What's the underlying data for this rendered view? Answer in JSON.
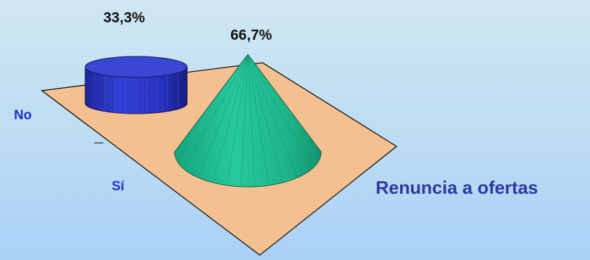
{
  "chart_data": {
    "type": "3d-bar",
    "title": "Renuncia a ofertas",
    "categories": [
      "No",
      "Sí"
    ],
    "values": [
      33.3,
      66.7
    ],
    "value_labels": [
      "33,3%",
      "66,7%"
    ],
    "unit": "%",
    "shapes": [
      "cylinder",
      "cone"
    ],
    "colors": {
      "no": "#2a36c8",
      "si": "#1fb98d",
      "floor": "#f5c08f",
      "label": "#1b2fcf",
      "title": "#2a3aa0"
    },
    "grid": false,
    "legend": "none"
  }
}
